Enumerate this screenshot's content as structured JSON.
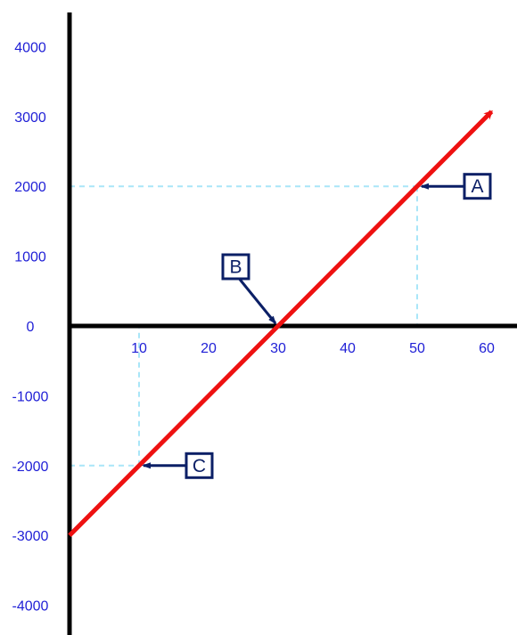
{
  "chart_data": {
    "type": "line",
    "title": "",
    "xlabel": "",
    "ylabel": "",
    "xlim": [
      0,
      64
    ],
    "ylim": [
      -4300,
      4700
    ],
    "x_ticks": [
      10,
      20,
      30,
      40,
      50,
      60
    ],
    "y_ticks": [
      4000,
      3000,
      2000,
      1000,
      0,
      -1000,
      -2000,
      -3000,
      -4000
    ],
    "grid": false,
    "series": [
      {
        "x": [
          0,
          10,
          30,
          50,
          60.7
        ],
        "y": [
          -3000,
          -2000,
          0,
          2000,
          3070
        ],
        "color": "#ee1111",
        "arrow_end": true
      }
    ],
    "annotations": [
      {
        "label": "A",
        "x": 50,
        "y": 2000,
        "side": "right",
        "guides": true
      },
      {
        "label": "B",
        "x": 30,
        "y": 0,
        "side": "above-left",
        "guides": false
      },
      {
        "label": "C",
        "x": 10,
        "y": -2000,
        "side": "right",
        "guides": true
      }
    ]
  },
  "colors": {
    "axis": "#000000",
    "tick_text": "#1f1fd6",
    "line": "#ee1111",
    "guide": "#a9e6f8",
    "callout": "#0b1f66"
  }
}
